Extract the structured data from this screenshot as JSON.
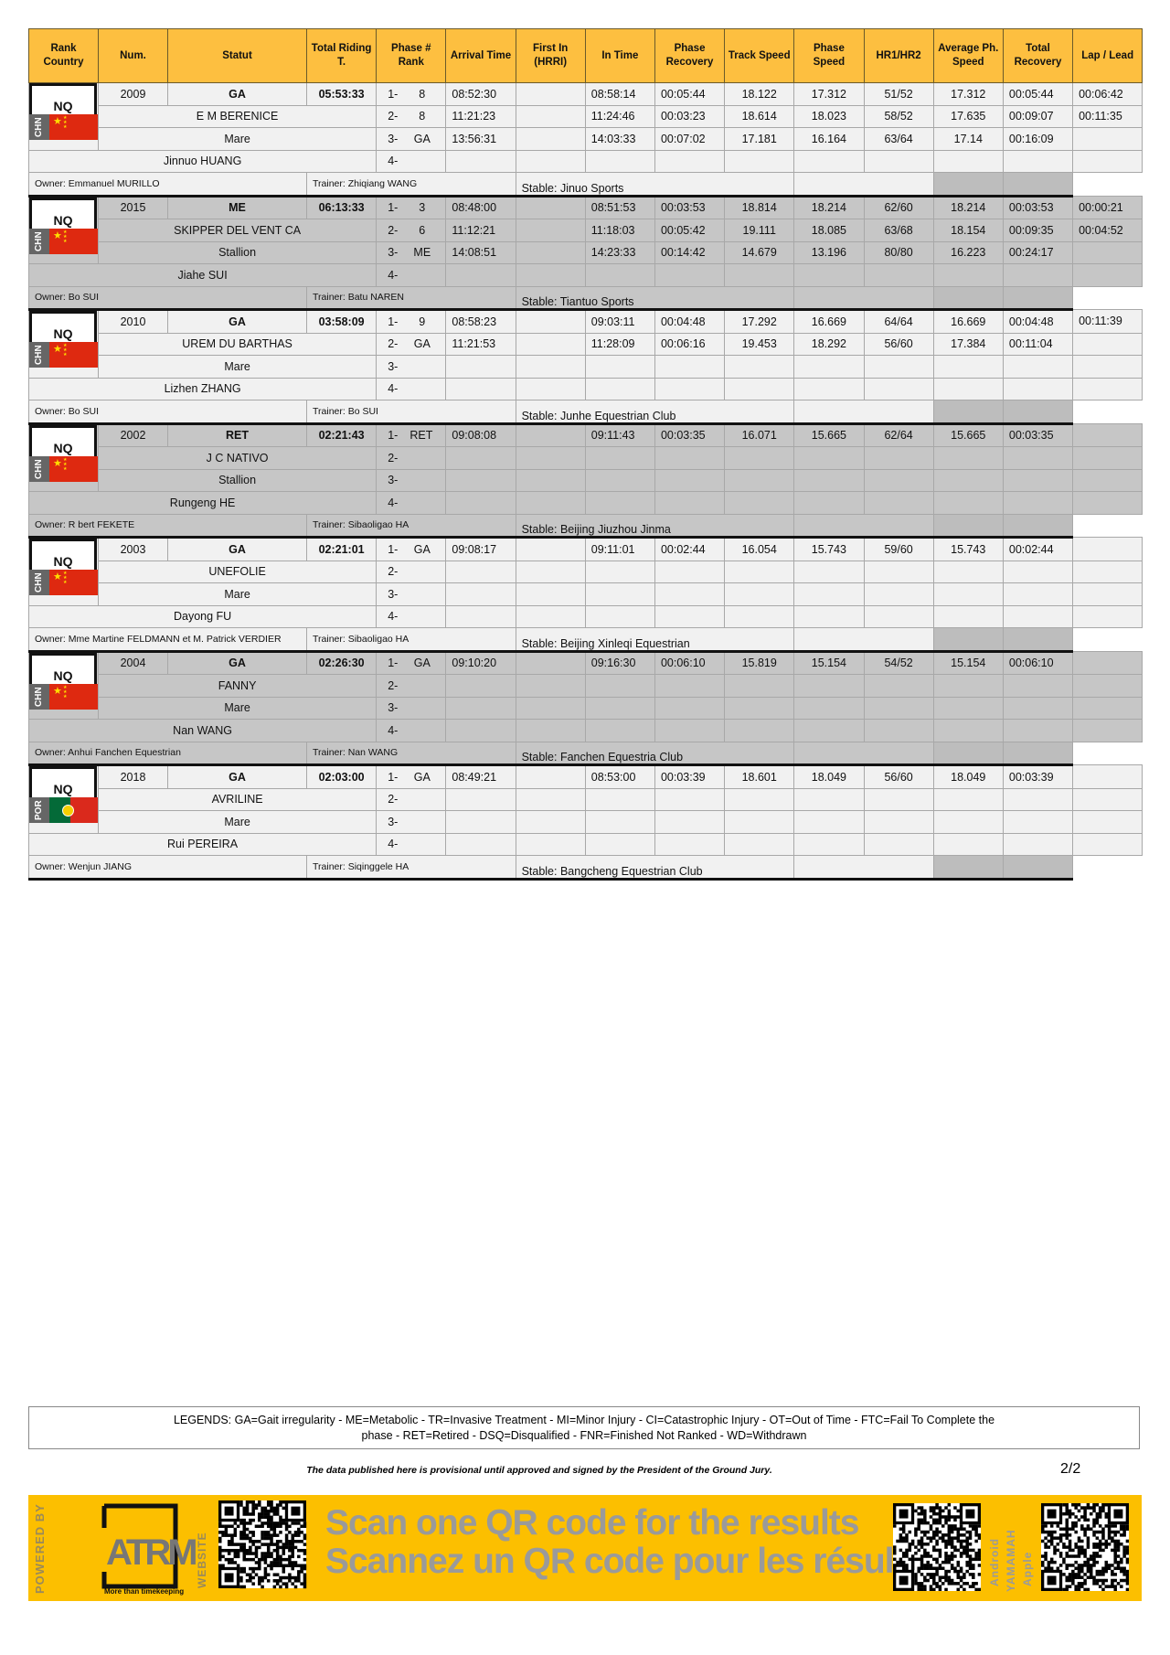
{
  "header": [
    "Rank Country",
    "Num.",
    "Statut",
    "Total Riding T.",
    "Phase # Rank",
    "Arrival Time",
    "First In (HRRI)",
    "In Time",
    "Phase Recovery",
    "Track Speed",
    "Phase Speed",
    "HR1/HR2",
    "Average Ph. Speed",
    "Total Recovery",
    "Lap / Lead"
  ],
  "colors": {
    "header": "#fdbf40",
    "banner": "#fcbf00",
    "row_light": "#f1f1f1",
    "row_gray": "#c6c6c6",
    "flag_chn": "#de2910",
    "flag_por_green": "#046a38",
    "flag_por_red": "#da291c"
  },
  "entries": [
    {
      "rank": "NQ",
      "country": "CHN",
      "num": "2009",
      "statut": "GA",
      "total": "05:53:33",
      "horse": "E M BERENICE",
      "sex": "Mare",
      "rider": "Jinnuo HUANG",
      "owner": "Owner: Emmanuel MURILLO",
      "trainer": "Trainer: Zhiqiang WANG",
      "stable": "Stable: Jinuo Sports",
      "phases": [
        {
          "n": "1-",
          "rank": "8",
          "arrival": "08:52:30",
          "first_in": "",
          "in_time": "08:58:14",
          "phase_recovery": "00:05:44",
          "track_speed": "18.122",
          "phase_speed": "17.312",
          "hr": "51/52",
          "avg_speed": "17.312",
          "total_recovery": "00:05:44",
          "lap_lead": "00:06:42"
        },
        {
          "n": "2-",
          "rank": "8",
          "arrival": "11:21:23",
          "first_in": "",
          "in_time": "11:24:46",
          "phase_recovery": "00:03:23",
          "track_speed": "18.614",
          "phase_speed": "18.023",
          "hr": "58/52",
          "avg_speed": "17.635",
          "total_recovery": "00:09:07",
          "lap_lead": "00:11:35"
        },
        {
          "n": "3-",
          "rank": "GA",
          "arrival": "13:56:31",
          "first_in": "",
          "in_time": "14:03:33",
          "phase_recovery": "00:07:02",
          "track_speed": "17.181",
          "phase_speed": "16.164",
          "hr": "63/64",
          "avg_speed": "17.14",
          "total_recovery": "00:16:09",
          "lap_lead": ""
        },
        {
          "n": "4-"
        }
      ]
    },
    {
      "rank": "NQ",
      "country": "CHN",
      "num": "2015",
      "statut": "ME",
      "total": "06:13:33",
      "horse": "SKIPPER DEL VENT CA",
      "sex": "Stallion",
      "rider": "Jiahe SUI",
      "owner": "Owner: Bo SUI",
      "trainer": "Trainer: Batu NAREN",
      "stable": "Stable: Tiantuo Sports",
      "phases": [
        {
          "n": "1-",
          "rank": "3",
          "arrival": "08:48:00",
          "first_in": "",
          "in_time": "08:51:53",
          "phase_recovery": "00:03:53",
          "track_speed": "18.814",
          "phase_speed": "18.214",
          "hr": "62/60",
          "avg_speed": "18.214",
          "total_recovery": "00:03:53",
          "lap_lead": "00:00:21"
        },
        {
          "n": "2-",
          "rank": "6",
          "arrival": "11:12:21",
          "first_in": "",
          "in_time": "11:18:03",
          "phase_recovery": "00:05:42",
          "track_speed": "19.111",
          "phase_speed": "18.085",
          "hr": "63/68",
          "avg_speed": "18.154",
          "total_recovery": "00:09:35",
          "lap_lead": "00:04:52"
        },
        {
          "n": "3-",
          "rank": "ME",
          "arrival": "14:08:51",
          "first_in": "",
          "in_time": "14:23:33",
          "phase_recovery": "00:14:42",
          "track_speed": "14.679",
          "phase_speed": "13.196",
          "hr": "80/80",
          "avg_speed": "16.223",
          "total_recovery": "00:24:17",
          "lap_lead": ""
        },
        {
          "n": "4-"
        }
      ]
    },
    {
      "rank": "NQ",
      "country": "CHN",
      "num": "2010",
      "statut": "GA",
      "total": "03:58:09",
      "horse": "UREM DU BARTHAS",
      "sex": "Mare",
      "rider": "Lizhen ZHANG",
      "owner": "Owner: Bo SUI",
      "trainer": "Trainer: Bo SUI",
      "stable": "Stable: Junhe Equestrian Club",
      "phases": [
        {
          "n": "1-",
          "rank": "9",
          "arrival": "08:58:23",
          "first_in": "",
          "in_time": "09:03:11",
          "phase_recovery": "00:04:48",
          "track_speed": "17.292",
          "phase_speed": "16.669",
          "hr": "64/64",
          "avg_speed": "16.669",
          "total_recovery": "00:04:48",
          "lap_lead": "00:11:39"
        },
        {
          "n": "2-",
          "rank": "GA",
          "arrival": "11:21:53",
          "first_in": "",
          "in_time": "11:28:09",
          "phase_recovery": "00:06:16",
          "track_speed": "19.453",
          "phase_speed": "18.292",
          "hr": "56/60",
          "avg_speed": "17.384",
          "total_recovery": "00:11:04",
          "lap_lead": ""
        },
        {
          "n": "3-"
        },
        {
          "n": "4-"
        }
      ]
    },
    {
      "rank": "NQ",
      "country": "CHN",
      "num": "2002",
      "statut": "RET",
      "total": "02:21:43",
      "horse": "J C NATIVO",
      "sex": "Stallion",
      "rider": "Rungeng HE",
      "owner": "Owner: R  bert FEKETE",
      "trainer": "Trainer: Sibaoligao HA",
      "stable": "Stable: Beijing Jiuzhou Jinma",
      "phases": [
        {
          "n": "1-",
          "rank": "RET",
          "arrival": "09:08:08",
          "first_in": "",
          "in_time": "09:11:43",
          "phase_recovery": "00:03:35",
          "track_speed": "16.071",
          "phase_speed": "15.665",
          "hr": "62/64",
          "avg_speed": "15.665",
          "total_recovery": "00:03:35",
          "lap_lead": ""
        },
        {
          "n": "2-"
        },
        {
          "n": "3-"
        },
        {
          "n": "4-"
        }
      ]
    },
    {
      "rank": "NQ",
      "country": "CHN",
      "num": "2003",
      "statut": "GA",
      "total": "02:21:01",
      "horse": "UNEFOLIE",
      "sex": "Mare",
      "rider": "Dayong FU",
      "owner": "Owner: Mme Martine FELDMANN et M. Patrick VERDIER",
      "trainer": "Trainer: Sibaoligao HA",
      "stable": "Stable: Beijing Xinleqi Equestrian",
      "phases": [
        {
          "n": "1-",
          "rank": "GA",
          "arrival": "09:08:17",
          "first_in": "",
          "in_time": "09:11:01",
          "phase_recovery": "00:02:44",
          "track_speed": "16.054",
          "phase_speed": "15.743",
          "hr": "59/60",
          "avg_speed": "15.743",
          "total_recovery": "00:02:44",
          "lap_lead": ""
        },
        {
          "n": "2-"
        },
        {
          "n": "3-"
        },
        {
          "n": "4-"
        }
      ]
    },
    {
      "rank": "NQ",
      "country": "CHN",
      "num": "2004",
      "statut": "GA",
      "total": "02:26:30",
      "horse": "FANNY",
      "sex": "Mare",
      "rider": "Nan WANG",
      "owner": "Owner: Anhui Fanchen Equestrian",
      "trainer": "Trainer: Nan WANG",
      "stable": "Stable: Fanchen Equestria Club",
      "phases": [
        {
          "n": "1-",
          "rank": "GA",
          "arrival": "09:10:20",
          "first_in": "",
          "in_time": "09:16:30",
          "phase_recovery": "00:06:10",
          "track_speed": "15.819",
          "phase_speed": "15.154",
          "hr": "54/52",
          "avg_speed": "15.154",
          "total_recovery": "00:06:10",
          "lap_lead": ""
        },
        {
          "n": "2-"
        },
        {
          "n": "3-"
        },
        {
          "n": "4-"
        }
      ]
    },
    {
      "rank": "NQ",
      "country": "POR",
      "num": "2018",
      "statut": "GA",
      "total": "02:03:00",
      "horse": "AVRILINE",
      "sex": "Mare",
      "rider": "Rui PEREIRA",
      "owner": "Owner: Wenjun JIANG",
      "trainer": "Trainer: Siqinggele HA",
      "stable": "Stable: Bangcheng Equestrian Club",
      "phases": [
        {
          "n": "1-",
          "rank": "GA",
          "arrival": "08:49:21",
          "first_in": "",
          "in_time": "08:53:00",
          "phase_recovery": "00:03:39",
          "track_speed": "18.601",
          "phase_speed": "18.049",
          "hr": "56/60",
          "avg_speed": "18.049",
          "total_recovery": "00:03:39",
          "lap_lead": ""
        },
        {
          "n": "2-"
        },
        {
          "n": "3-"
        },
        {
          "n": "4-"
        }
      ]
    }
  ],
  "legend": {
    "line1": "LEGENDS: GA=Gait irregularity - ME=Metabolic - TR=Invasive Treatment - MI=Minor Injury - CI=Catastrophic Injury - OT=Out of Time - FTC=Fail To Complete the",
    "line2": "phase - RET=Retired - DSQ=Disqualified - FNR=Finished Not Ranked - WD=Withdrawn"
  },
  "disclaimer": "The data published here is provisional until approved and signed by the President of the Ground Jury.",
  "page": "2/2",
  "banner": {
    "powered_by": "POWERED BY",
    "logo": "ATRM",
    "tagline": "More than timekeeping",
    "website": "WEBSITE",
    "scan_en": "Scan one QR code for the results",
    "scan_fr": "Scannez un QR code pour les résultats",
    "android": "Android",
    "yamamah": "YAMAMAH",
    "apple": "Apple"
  }
}
